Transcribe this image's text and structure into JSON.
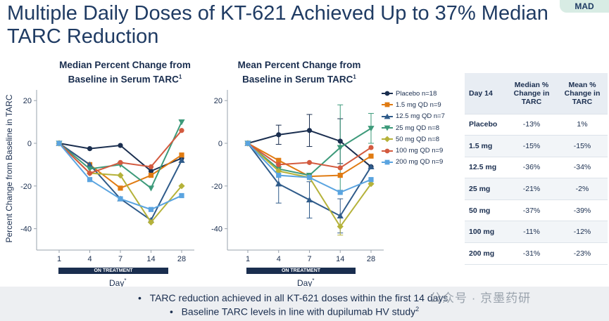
{
  "title": "Multiple Daily Doses of KT-621 Achieved Up to 37% Median TARC Reduction",
  "badge": "MAD",
  "colors": {
    "navy": "#1a2e4f",
    "footer_bg": "#edeff2"
  },
  "chart_data": [
    {
      "type": "line",
      "title": "Median Percent Change from Baseline in Serum TARC",
      "title_superscript": "1",
      "ylabel": "Percent Change from Baseline in TARC",
      "xlabel": "Day",
      "xlabel_suffix": "*",
      "x": [
        1,
        4,
        7,
        14,
        28
      ],
      "ylim": [
        -50,
        25
      ],
      "yticks": [
        20,
        0,
        -20,
        -40
      ],
      "treatment_label": "ON TREATMENT",
      "series": [
        {
          "name": "Placebo n=18",
          "color": "#1a2e4f",
          "marker": "circle",
          "values": [
            0,
            -2.5,
            -1,
            -13,
            -7
          ]
        },
        {
          "name": "1.5 mg QD n=9",
          "color": "#e07b12",
          "marker": "square",
          "values": [
            0,
            -10,
            -21,
            -15,
            -5.5
          ]
        },
        {
          "name": "12.5 mg QD n=7",
          "color": "#2f5b8a",
          "marker": "triangle-up",
          "values": [
            0,
            -10,
            -26,
            -36,
            -8
          ]
        },
        {
          "name": "25 mg QD n=8",
          "color": "#3d9a7a",
          "marker": "triangle-down",
          "values": [
            0,
            -12,
            -10,
            -21,
            10
          ]
        },
        {
          "name": "50 mg QD n=8",
          "color": "#b5b23a",
          "marker": "diamond",
          "values": [
            0,
            -14,
            -15,
            -37,
            -20
          ]
        },
        {
          "name": "100 mg QD n=9",
          "color": "#d35a3f",
          "marker": "circle",
          "values": [
            0,
            -14,
            -9,
            -11,
            6
          ]
        },
        {
          "name": "200 mg QD n=9",
          "color": "#5aa4e0",
          "marker": "square",
          "values": [
            0,
            -17,
            -26,
            -31,
            -24.5
          ]
        }
      ]
    },
    {
      "type": "line",
      "title": "Mean Percent Change from Baseline in Serum TARC",
      "title_superscript": "1",
      "xlabel": "Day",
      "xlabel_suffix": "*",
      "x": [
        1,
        4,
        7,
        14,
        28
      ],
      "ylim": [
        -50,
        25
      ],
      "yticks": [
        20,
        0,
        -20,
        -40
      ],
      "treatment_label": "ON TREATMENT",
      "series": [
        {
          "name": "Placebo n=18",
          "color": "#1a2e4f",
          "marker": "circle",
          "values": [
            0,
            4,
            6,
            1,
            -11
          ],
          "errors": [
            0,
            4.5,
            7.5,
            10.5,
            0
          ]
        },
        {
          "name": "1.5 mg QD n=9",
          "color": "#e07b12",
          "marker": "square",
          "values": [
            0,
            -8,
            -15.5,
            -15,
            -6
          ],
          "errors": [
            0,
            0,
            0,
            0,
            0
          ]
        },
        {
          "name": "12.5 mg QD n=7",
          "color": "#2f5b8a",
          "marker": "triangle-up",
          "values": [
            0,
            -19,
            -26.5,
            -34,
            -11
          ],
          "errors": [
            0,
            9,
            8.5,
            8,
            0
          ]
        },
        {
          "name": "25 mg QD n=8",
          "color": "#3d9a7a",
          "marker": "triangle-down",
          "values": [
            0,
            -12,
            -15,
            -2,
            7
          ],
          "errors": [
            0,
            0,
            0,
            20,
            7
          ]
        },
        {
          "name": "50 mg QD n=8",
          "color": "#b5b23a",
          "marker": "diamond",
          "values": [
            0,
            -13,
            -16,
            -39,
            -19
          ],
          "errors": [
            0,
            0,
            0,
            4,
            0
          ]
        },
        {
          "name": "100 mg QD n=9",
          "color": "#d35a3f",
          "marker": "circle",
          "values": [
            0,
            -10,
            -9,
            -11.5,
            -2
          ],
          "errors": [
            0,
            0,
            0,
            0,
            0
          ]
        },
        {
          "name": "200 mg QD n=9",
          "color": "#5aa4e0",
          "marker": "square",
          "values": [
            0,
            -15,
            -16,
            -23,
            -17
          ],
          "errors": [
            0,
            0,
            0,
            0,
            0
          ]
        }
      ]
    }
  ],
  "table": {
    "headers": [
      "Day 14",
      "Median % Change in TARC",
      "Mean % Change in TARC"
    ],
    "rows": [
      [
        "Placebo",
        "-13%",
        "1%"
      ],
      [
        "1.5 mg",
        "-15%",
        "-15%"
      ],
      [
        "12.5 mg",
        "-36%",
        "-34%"
      ],
      [
        "25 mg",
        "-21%",
        "-2%"
      ],
      [
        "50 mg",
        "-37%",
        "-39%"
      ],
      [
        "100 mg",
        "-11%",
        "-12%"
      ],
      [
        "200 mg",
        "-31%",
        "-23%"
      ]
    ]
  },
  "footer": {
    "bullet": "•",
    "line1": "TARC reduction achieved in all KT-621 doses within the first 14 days",
    "line2": "Baseline TARC levels in line with dupilumab HV study",
    "line2_superscript": "2"
  },
  "watermark": "公众号 · 京墨药研"
}
